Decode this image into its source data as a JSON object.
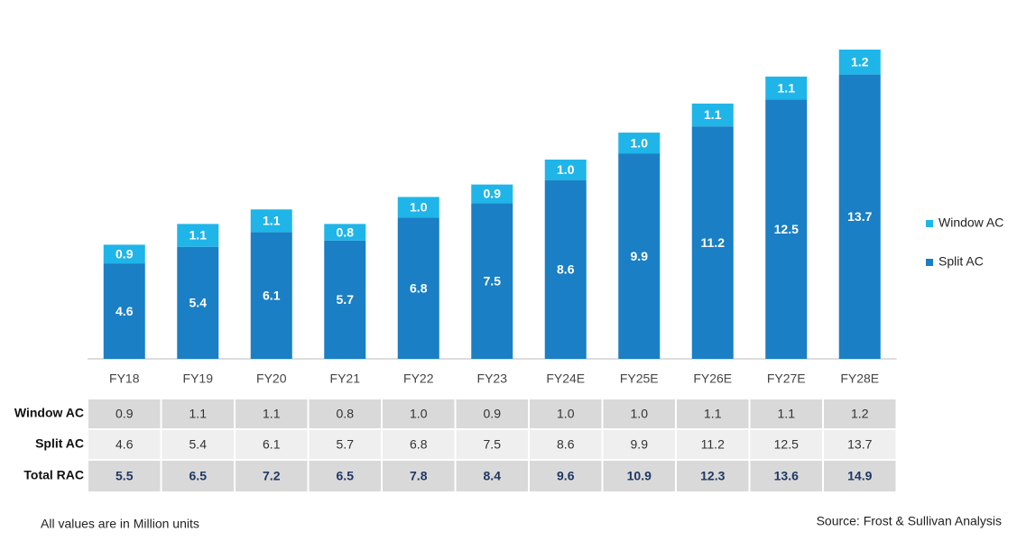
{
  "chart_data": {
    "type": "stacked_bar",
    "categories": [
      "FY18",
      "FY19",
      "FY20",
      "FY21",
      "FY22",
      "FY23",
      "FY24E",
      "FY25E",
      "FY26E",
      "FY27E",
      "FY28E"
    ],
    "series": [
      {
        "name": "Split AC",
        "color": "#1a7fc4",
        "values": [
          4.6,
          5.4,
          6.1,
          5.7,
          6.8,
          7.5,
          8.6,
          9.9,
          11.2,
          12.5,
          13.7
        ]
      },
      {
        "name": "Window AC",
        "color": "#1fb5e8",
        "values": [
          0.9,
          1.1,
          1.1,
          0.8,
          1.0,
          0.9,
          1.0,
          1.0,
          1.1,
          1.1,
          1.2
        ],
        "value_labels": [
          "0.9",
          "1.1",
          "1.1",
          "0.8",
          "1.0",
          "0.9",
          "1.0",
          "1.0",
          "1.1",
          "1.1",
          "1.2"
        ]
      }
    ],
    "total": {
      "name": "Total RAC",
      "values": [
        5.5,
        6.5,
        7.2,
        6.5,
        7.8,
        8.4,
        9.6,
        10.9,
        12.3,
        13.6,
        14.9
      ]
    },
    "legend": "right",
    "notes": [
      "All values are in Million units",
      "Source: Frost & Sullivan Analysis"
    ]
  }
}
